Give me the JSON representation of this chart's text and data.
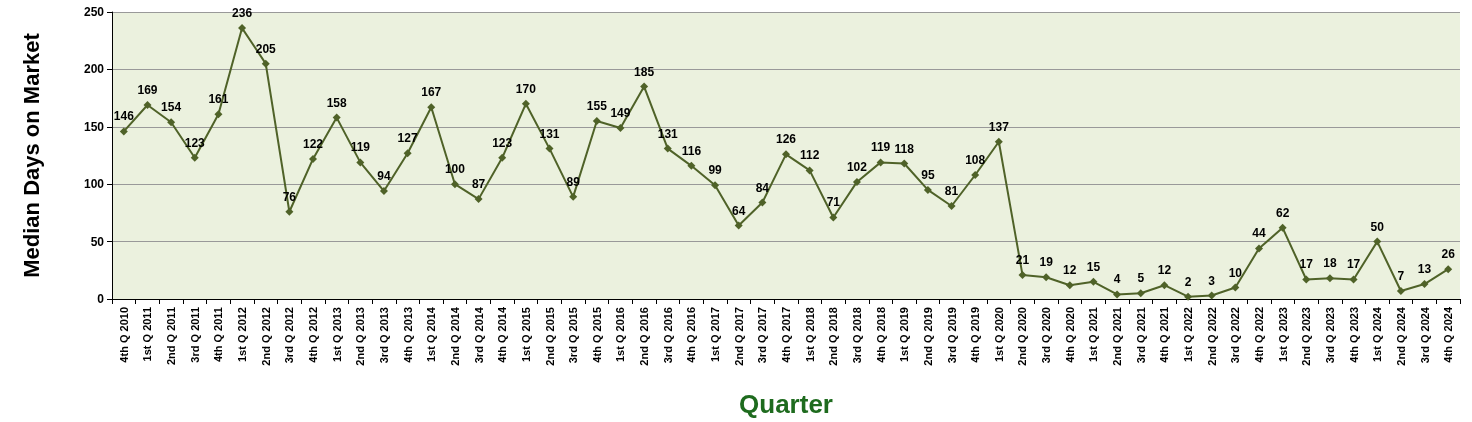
{
  "chart_data": {
    "type": "line",
    "xlabel": "Quarter",
    "ylabel": "Median Days on Market",
    "categories": [
      "4th Q 2010",
      "1st Q 2011",
      "2nd Q 2011",
      "3rd Q 2011",
      "4th Q 2011",
      "1st Q 2012",
      "2nd Q 2012",
      "3rd Q 2012",
      "4th Q 2012",
      "1st Q 2013",
      "2nd Q 2013",
      "3rd Q 2013",
      "4th Q 2013",
      "1st Q 2014",
      "2nd Q 2014",
      "3rd Q 2014",
      "4th Q 2014",
      "1st Q 2015",
      "2nd Q 2015",
      "3rd Q 2015",
      "4th Q 2015",
      "1st Q 2016",
      "2nd Q 2016",
      "3rd Q 2016",
      "4th Q 2016",
      "1st Q 2017",
      "2nd Q 2017",
      "3rd Q 2017",
      "4th Q 2017",
      "1st Q 2018",
      "2nd Q 2018",
      "3rd Q 2018",
      "4th Q 2018",
      "1st Q 2019",
      "2nd Q 2019",
      "3rd Q 2019",
      "4th Q 2019",
      "1st Q 2020",
      "2nd Q 2020",
      "3rd Q 2020",
      "4th Q 2020",
      "1st Q 2021",
      "2nd Q 2021",
      "3rd Q 2021",
      "4th Q 2021",
      "1st Q 2022",
      "2nd Q 2022",
      "3rd Q 2022",
      "4th Q 2022",
      "1st Q 2023",
      "2nd Q 2023",
      "3rd Q 2023",
      "4th Q 2023",
      "1st Q 2024",
      "2nd Q 2024",
      "3rd Q 2024",
      "4th Q 2024"
    ],
    "series": [
      {
        "color": "#4f6228",
        "values": [
          146,
          169,
          154,
          123,
          161,
          236,
          205,
          76,
          122,
          158,
          119,
          94,
          127,
          167,
          100,
          87,
          123,
          170,
          131,
          89,
          155,
          149,
          185,
          131,
          116,
          99,
          64,
          84,
          126,
          112,
          71,
          102,
          119,
          118,
          95,
          81,
          108,
          137,
          21,
          19,
          12,
          15,
          4,
          5,
          12,
          2,
          3,
          10,
          44,
          62,
          17,
          18,
          17,
          50,
          7,
          13,
          26
        ]
      }
    ],
    "ylim": [
      0,
      250
    ],
    "yticks": [
      0,
      50,
      100,
      150,
      200,
      250
    ],
    "grid": "y",
    "marker": "diamond",
    "line_style": "solid",
    "data_labels": true
  }
}
